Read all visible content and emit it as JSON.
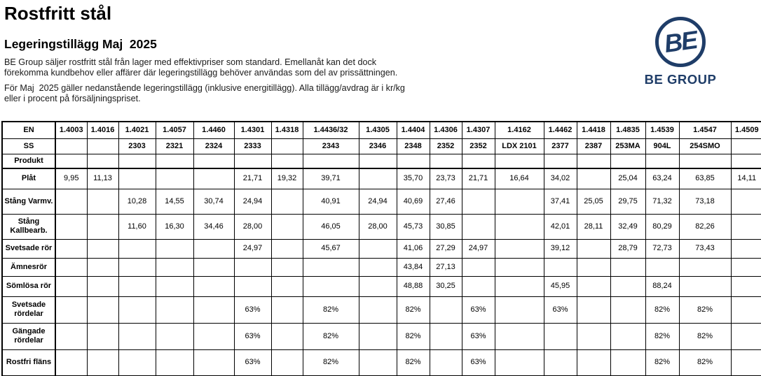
{
  "page": {
    "title": "Rostfritt stål",
    "subtitle": "Legeringstillägg Maj  2025",
    "paragraph1": "BE Group säljer rostfritt stål från lager med effektivpriser som standard. Emellanåt kan det dock förekomma kundbehov eller affärer där legeringstillägg behöver användas som del av prissättningen.",
    "paragraph2": "För Maj  2025 gäller nedanstående legeringstillägg (inklusive energitillägg). Alla tillägg/avdrag är i kr/kg eller i procent på försäljningspriset."
  },
  "logo": {
    "circle_text": "BE",
    "wordmark": "BE GROUP",
    "color": "#1f3d68"
  },
  "colors": {
    "filled_cell": "#0d385c",
    "border": "#000000"
  },
  "table": {
    "header_rows": [
      {
        "label": "EN",
        "values": [
          "1.4003",
          "1.4016",
          "1.4021",
          "1.4057",
          "1.4460",
          "1.4301",
          "1.4318",
          "1.4436/32",
          "1.4305",
          "1.4404",
          "1.4306",
          "1.4307",
          "1.4162",
          "1.4462",
          "1.4418",
          "1.4835",
          "1.4539",
          "1.4547",
          "1.4509"
        ]
      },
      {
        "label": "SS",
        "values": [
          "",
          "",
          "2303",
          "2321",
          "2324",
          "2333",
          "",
          "2343",
          "2346",
          "2348",
          "2352",
          "2352",
          "LDX 2101",
          "2377",
          "2387",
          "253MA",
          "904L",
          "254SMO",
          ""
        ]
      },
      {
        "label": "Produkt",
        "values": [
          "",
          "",
          "",
          "",
          "",
          "",
          "",
          "",
          "",
          "",
          "",
          "",
          "",
          "",
          "",
          "",
          "",
          "",
          ""
        ]
      }
    ],
    "rows": [
      {
        "label": "Plåt",
        "values": [
          "9,95",
          "11,13",
          null,
          null,
          null,
          "21,71",
          "19,32",
          "39,71",
          null,
          "35,70",
          "23,73",
          "21,71",
          "16,64",
          "34,02",
          null,
          "25,04",
          "63,24",
          "63,85",
          "14,11"
        ]
      },
      {
        "label": "Stång Varmv.",
        "values": [
          null,
          null,
          "10,28",
          "14,55",
          "30,74",
          "24,94",
          null,
          "40,91",
          "24,94",
          "40,69",
          "27,46",
          null,
          null,
          "37,41",
          "25,05",
          "29,75",
          "71,32",
          "73,18",
          null
        ]
      },
      {
        "label": "Stång Kallbearb.",
        "values": [
          null,
          null,
          "11,60",
          "16,30",
          "34,46",
          "28,00",
          null,
          "46,05",
          "28,00",
          "45,73",
          "30,85",
          null,
          null,
          "42,01",
          "28,11",
          "32,49",
          "80,29",
          "82,26",
          null
        ]
      },
      {
        "label": "Svetsade rör",
        "values": [
          null,
          null,
          null,
          null,
          null,
          "24,97",
          null,
          "45,67",
          null,
          "41,06",
          "27,29",
          "24,97",
          null,
          "39,12",
          null,
          "28,79",
          "72,73",
          "73,43",
          null
        ]
      },
      {
        "label": "Ämnesrör",
        "values": [
          null,
          null,
          null,
          null,
          null,
          null,
          null,
          null,
          null,
          "43,84",
          "27,13",
          null,
          null,
          null,
          null,
          null,
          null,
          null,
          null
        ]
      },
      {
        "label": "Sömlösa rör",
        "values": [
          null,
          null,
          null,
          null,
          null,
          null,
          null,
          null,
          null,
          "48,88",
          "30,25",
          null,
          null,
          "45,95",
          null,
          null,
          "88,24",
          null,
          null
        ]
      },
      {
        "label": "Svetsade rördelar",
        "values": [
          null,
          null,
          null,
          null,
          null,
          "63%",
          null,
          "82%",
          null,
          "82%",
          null,
          "63%",
          null,
          "63%",
          null,
          null,
          "82%",
          "82%",
          null
        ]
      },
      {
        "label": "Gängade rördelar",
        "values": [
          null,
          null,
          null,
          null,
          null,
          "63%",
          null,
          "82%",
          null,
          "82%",
          null,
          "63%",
          null,
          null,
          null,
          null,
          "82%",
          "82%",
          null
        ]
      },
      {
        "label": "Rostfri fläns",
        "values": [
          null,
          null,
          null,
          null,
          null,
          "63%",
          null,
          "82%",
          null,
          "82%",
          null,
          "63%",
          null,
          null,
          null,
          null,
          "82%",
          "82%",
          null
        ]
      }
    ]
  }
}
